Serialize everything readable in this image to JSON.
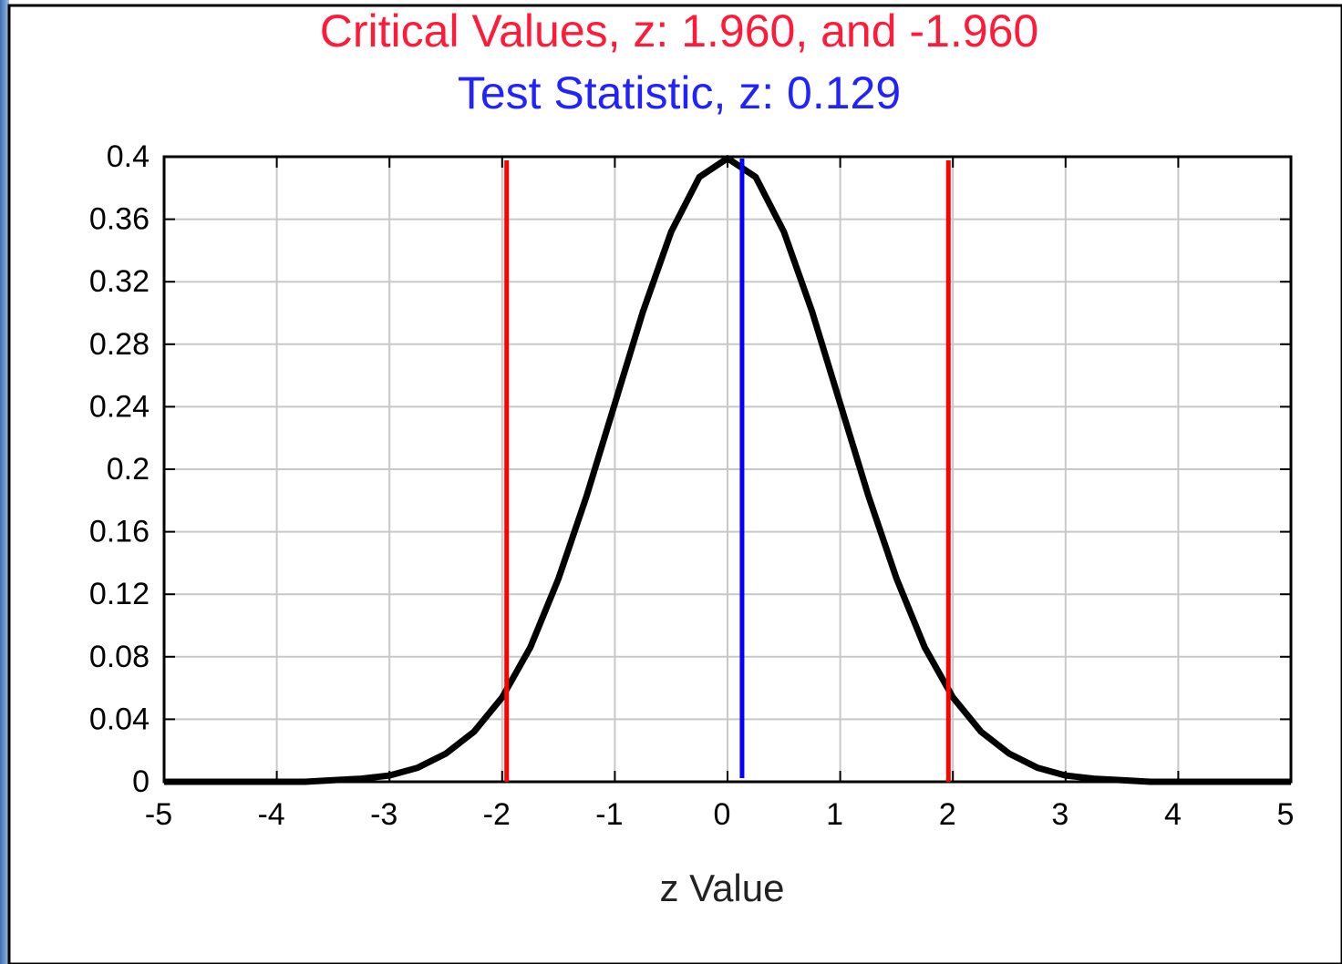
{
  "chart_data": {
    "type": "line",
    "title": "Critical Values, z: 1.960, and -1.960",
    "subtitle": "Test Statistic, z: 0.129",
    "xlabel": "z Value",
    "x": [
      -5,
      -4.75,
      -4.5,
      -4.25,
      -4,
      -3.75,
      -3.5,
      -3.25,
      -3,
      -2.75,
      -2.5,
      -2.25,
      -2,
      -1.75,
      -1.5,
      -1.25,
      -1,
      -0.75,
      -0.5,
      -0.25,
      0,
      0.25,
      0.5,
      0.75,
      1,
      1.25,
      1.5,
      1.75,
      2,
      2.25,
      2.5,
      2.75,
      3,
      3.25,
      3.5,
      3.75,
      4,
      4.25,
      4.5,
      4.75,
      5
    ],
    "series": [
      {
        "color": "#000000",
        "values": [
          0,
          0,
          0,
          0,
          0,
          0,
          0.001,
          0.002,
          0.004,
          0.009,
          0.018,
          0.032,
          0.054,
          0.086,
          0.13,
          0.183,
          0.242,
          0.301,
          0.352,
          0.387,
          0.399,
          0.387,
          0.352,
          0.301,
          0.242,
          0.183,
          0.13,
          0.086,
          0.054,
          0.032,
          0.018,
          0.009,
          0.004,
          0.002,
          0.001,
          0,
          0,
          0,
          0,
          0,
          0
        ]
      }
    ],
    "critical_values": {
      "color": "#ff0000",
      "values": [
        -1.96,
        1.96
      ]
    },
    "test_statistic": {
      "color": "#0000ff",
      "value": 0.129
    },
    "xlim": [
      -5,
      5
    ],
    "xticks": [
      -5,
      -4,
      -3,
      -2,
      -1,
      0,
      1,
      2,
      3,
      4,
      5
    ],
    "ylim": [
      0,
      0.4
    ],
    "yticks": [
      0,
      0.04,
      0.08,
      0.12,
      0.16,
      0.2,
      0.24,
      0.28,
      0.32,
      0.36,
      0.4
    ],
    "grid": true
  }
}
